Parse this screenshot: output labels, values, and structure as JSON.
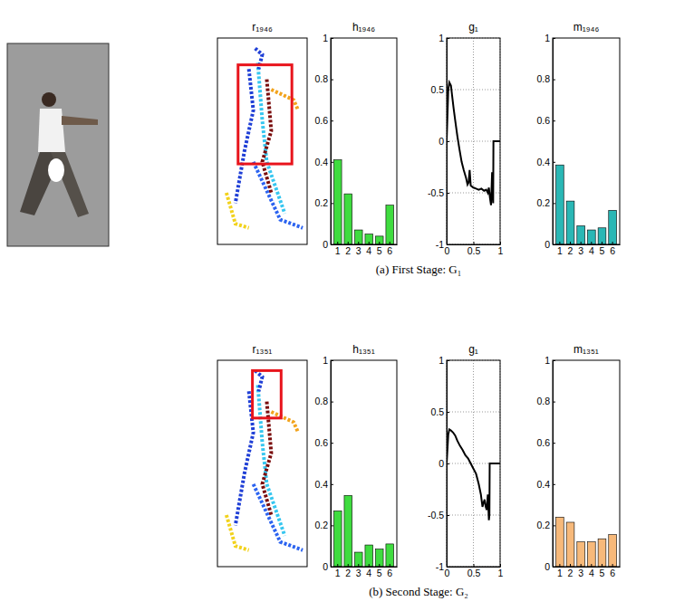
{
  "chart_data": [
    {
      "type": "image",
      "title": "r₁₉₄₆"
    },
    {
      "type": "bar",
      "title": "h₁₉₄₆",
      "categories": [
        "1",
        "2",
        "3",
        "4",
        "5",
        "6"
      ],
      "values": [
        0.41,
        0.245,
        0.07,
        0.05,
        0.04,
        0.19
      ],
      "color": "#3fdc3f",
      "ylim": [
        0,
        1
      ],
      "yticks": [
        0,
        0.2,
        0.4,
        0.6,
        0.8,
        1
      ]
    },
    {
      "type": "line",
      "title": "g₁",
      "x": [
        0,
        0.03,
        0.05,
        0.08,
        0.1,
        0.13,
        0.16,
        0.2,
        0.24,
        0.28,
        0.32,
        0.36,
        0.39,
        0.41,
        0.43,
        0.45,
        0.5,
        0.55,
        0.6,
        0.65,
        0.7,
        0.74,
        0.77,
        0.79,
        0.81,
        0.83,
        0.85,
        0.87,
        0.875,
        0.9,
        0.95,
        1
      ],
      "values": [
        0,
        0.5,
        0.57,
        0.54,
        0.45,
        0.32,
        0.2,
        0.05,
        -0.08,
        -0.2,
        -0.28,
        -0.35,
        -0.42,
        -0.4,
        -0.28,
        -0.43,
        -0.45,
        -0.46,
        -0.47,
        -0.46,
        -0.48,
        -0.47,
        -0.5,
        -0.45,
        -0.55,
        -0.62,
        -0.3,
        -0.6,
        0,
        0,
        0,
        0
      ],
      "color": "#000000",
      "xlim": [
        0,
        1
      ],
      "xticks": [
        0,
        0.5,
        1
      ],
      "ylim": [
        -1,
        1
      ],
      "yticks": [
        -1,
        -0.5,
        0,
        0.5,
        1
      ],
      "grid": true
    },
    {
      "type": "bar",
      "title": "m₁₉₄₆",
      "categories": [
        "1",
        "2",
        "3",
        "4",
        "5",
        "6"
      ],
      "values": [
        0.385,
        0.21,
        0.09,
        0.07,
        0.08,
        0.165
      ],
      "color": "#2ab7b5",
      "ylim": [
        0,
        1
      ],
      "yticks": [
        0,
        0.2,
        0.4,
        0.6,
        0.8,
        1
      ]
    },
    {
      "type": "image",
      "title": "r₁₃₅₁"
    },
    {
      "type": "bar",
      "title": "h₁₃₅₁",
      "categories": [
        "1",
        "2",
        "3",
        "4",
        "5",
        "6"
      ],
      "values": [
        0.27,
        0.345,
        0.07,
        0.105,
        0.085,
        0.11
      ],
      "color": "#3fdc3f",
      "ylim": [
        0,
        1
      ],
      "yticks": [
        0,
        0.2,
        0.4,
        0.6,
        0.8,
        1
      ]
    },
    {
      "type": "line",
      "title": "g₁",
      "x": [
        0,
        0.03,
        0.05,
        0.08,
        0.12,
        0.16,
        0.2,
        0.25,
        0.3,
        0.35,
        0.4,
        0.45,
        0.5,
        0.55,
        0.6,
        0.64,
        0.67,
        0.69,
        0.71,
        0.73,
        0.75,
        0.77,
        0.79,
        0.8,
        0.805,
        0.85,
        0.9,
        1
      ],
      "values": [
        0,
        0.28,
        0.33,
        0.32,
        0.3,
        0.27,
        0.22,
        0.17,
        0.13,
        0.08,
        0.05,
        0,
        -0.05,
        -0.1,
        -0.2,
        -0.3,
        -0.42,
        -0.38,
        -0.35,
        -0.42,
        -0.45,
        -0.3,
        -0.55,
        -0.5,
        0,
        0,
        0,
        0
      ],
      "color": "#000000",
      "xlim": [
        0,
        1
      ],
      "xticks": [
        0,
        0.5,
        1
      ],
      "ylim": [
        -1,
        1
      ],
      "yticks": [
        -1,
        -0.5,
        0,
        0.5,
        1
      ],
      "grid": true
    },
    {
      "type": "bar",
      "title": "m₁₃₅₁",
      "categories": [
        "1",
        "2",
        "3",
        "4",
        "5",
        "6"
      ],
      "values": [
        0.24,
        0.215,
        0.12,
        0.12,
        0.135,
        0.155
      ],
      "color": "#f7b97a",
      "ylim": [
        0,
        1
      ],
      "yticks": [
        0,
        0.2,
        0.4,
        0.6,
        0.8,
        1
      ]
    }
  ],
  "captions": [
    "(a) First Stage: G₁",
    "(b) Second Stage: G₂"
  ]
}
